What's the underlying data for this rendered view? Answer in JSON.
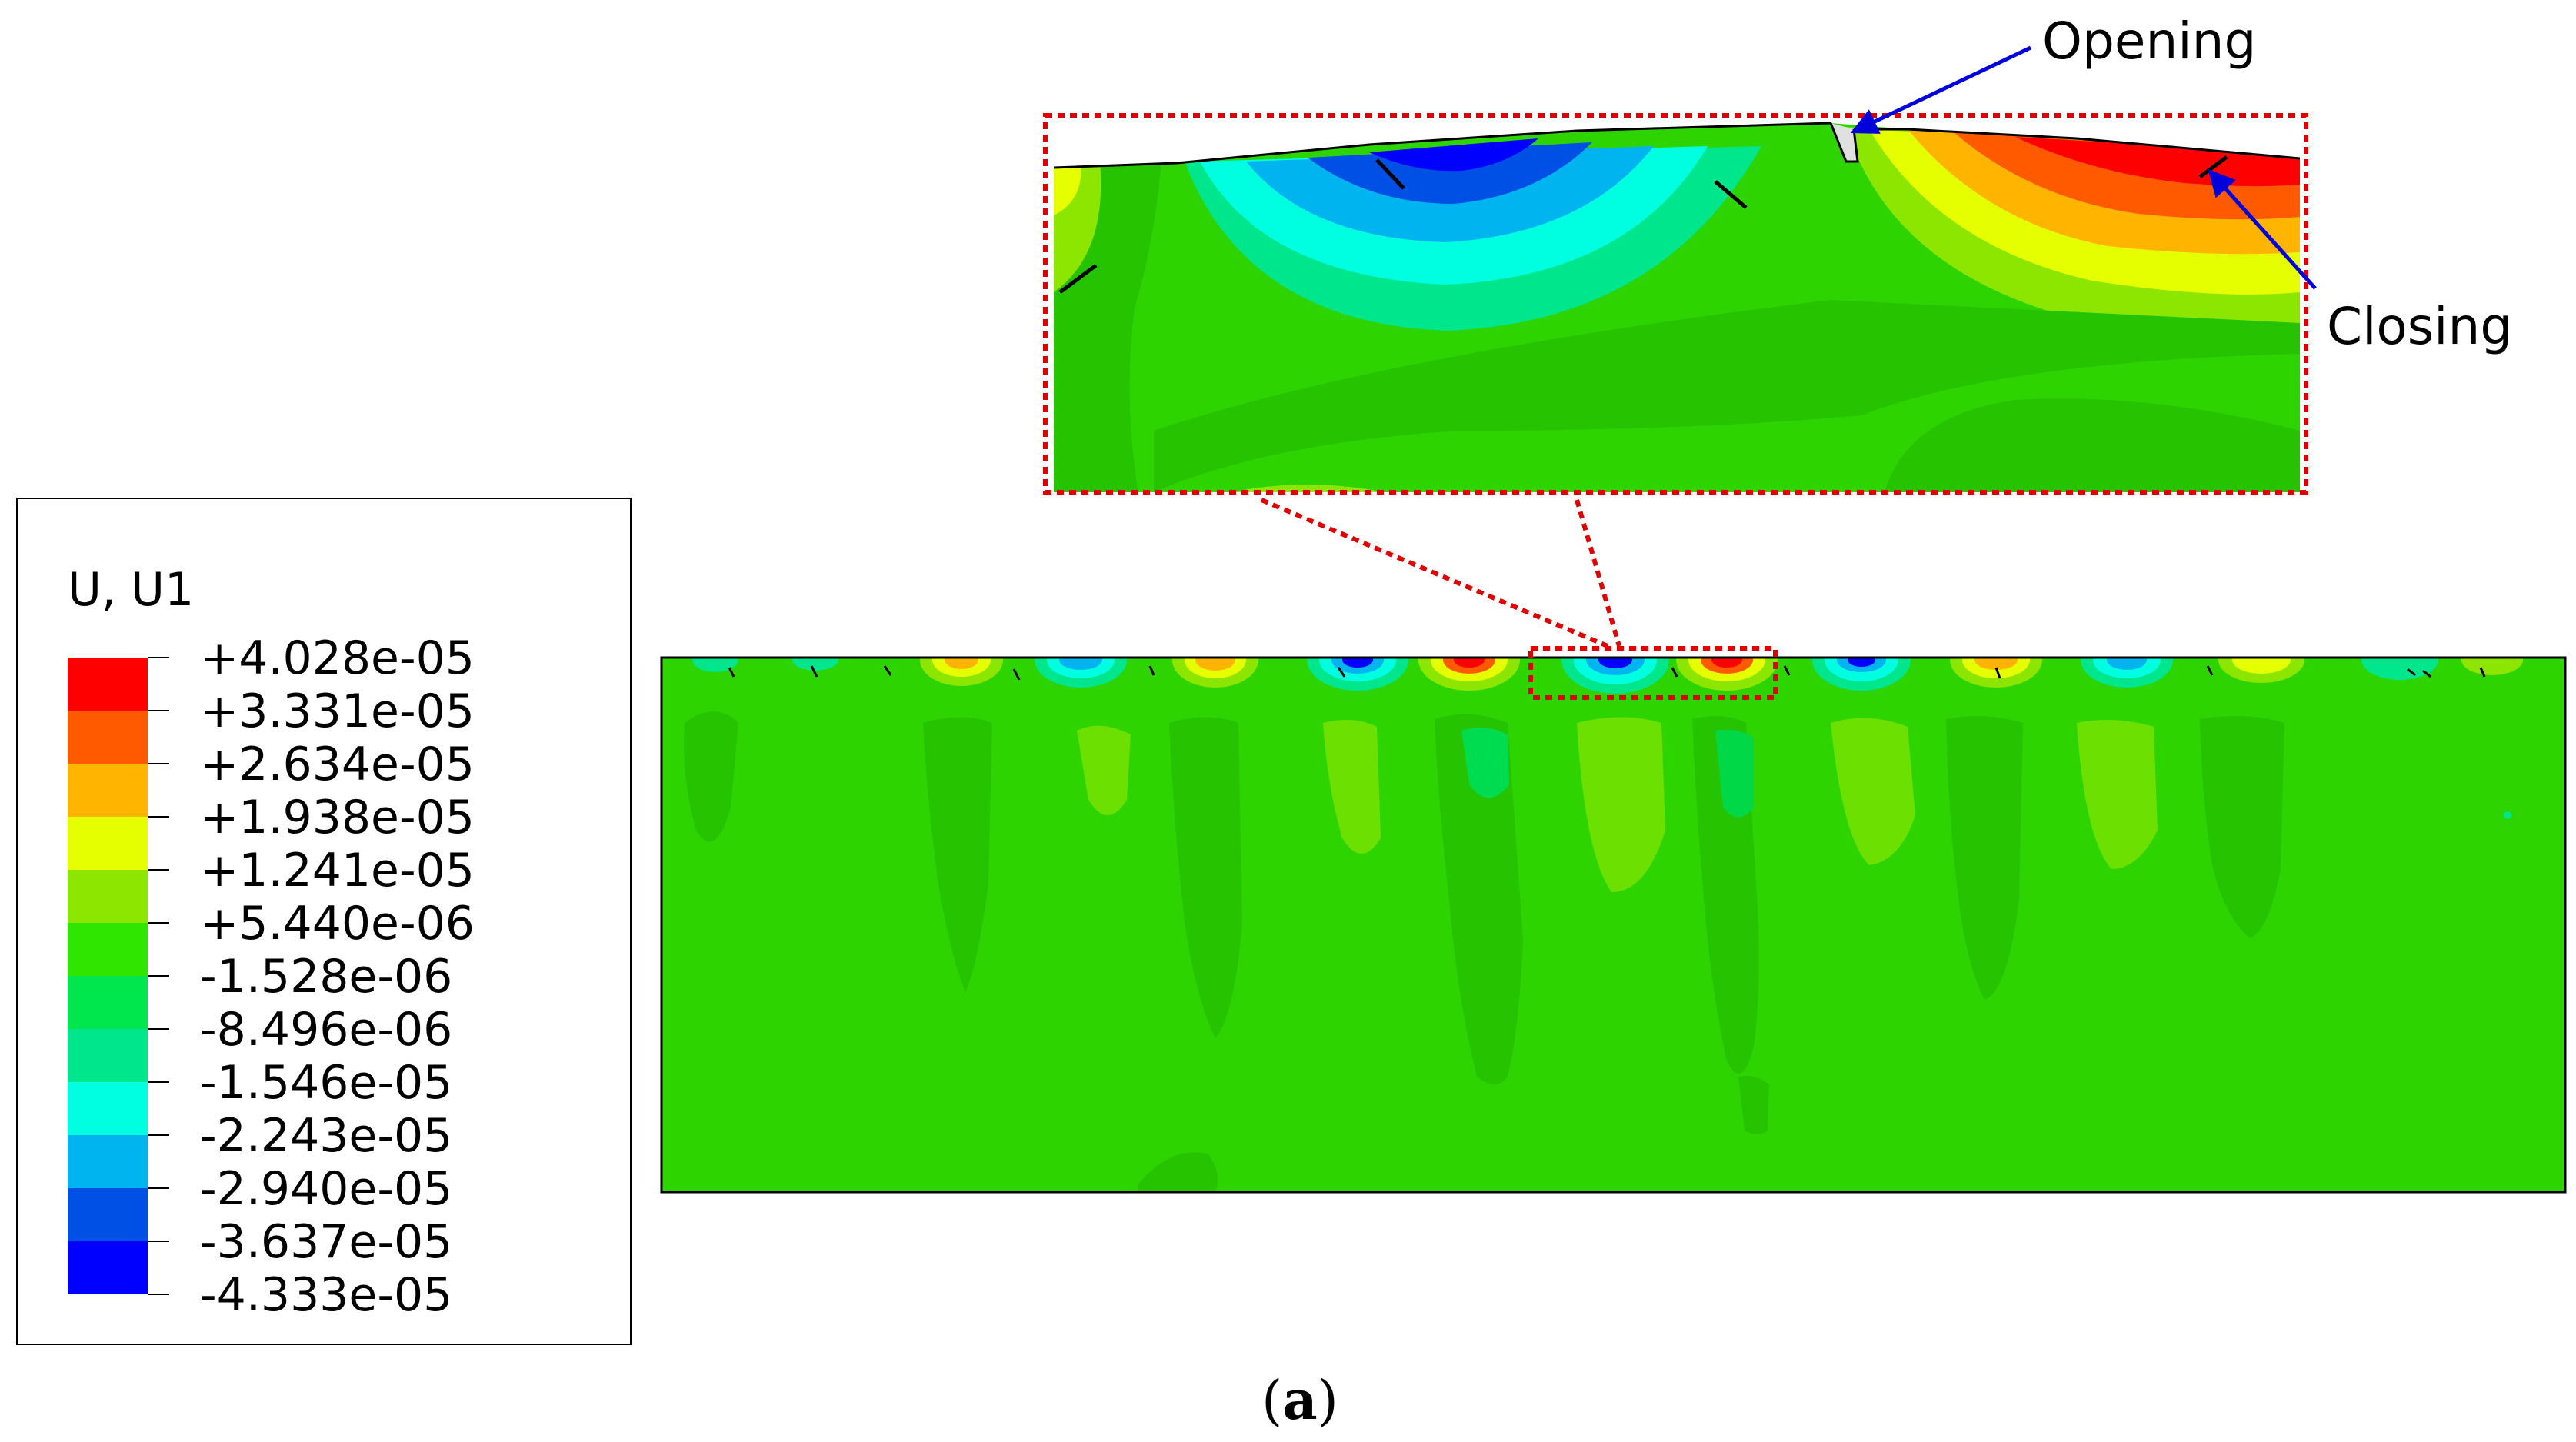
{
  "legend": {
    "title": "U, U1",
    "colors": [
      "#ff0000",
      "#ff5a00",
      "#ffb400",
      "#e6ff00",
      "#8ce600",
      "#2ee600",
      "#00e64d",
      "#00e68c",
      "#00ffe0",
      "#00b4f0",
      "#0050e6",
      "#0000ff"
    ],
    "values": [
      "+4.028e-05",
      "+3.331e-05",
      "+2.634e-05",
      "+1.938e-05",
      "+1.241e-05",
      "+5.440e-06",
      "-1.528e-06",
      "-8.496e-06",
      "-1.546e-05",
      "-2.243e-05",
      "-2.940e-05",
      "-3.637e-05",
      "-4.333e-05"
    ]
  },
  "annotations": {
    "opening": "Opening",
    "closing": "Closing"
  },
  "figure_label": {
    "open": "(",
    "letter": "a",
    "close": ")"
  },
  "colors": {
    "base_green": "#2ed400",
    "zoom_box": "#e00000",
    "arrow": "#0000dd"
  }
}
